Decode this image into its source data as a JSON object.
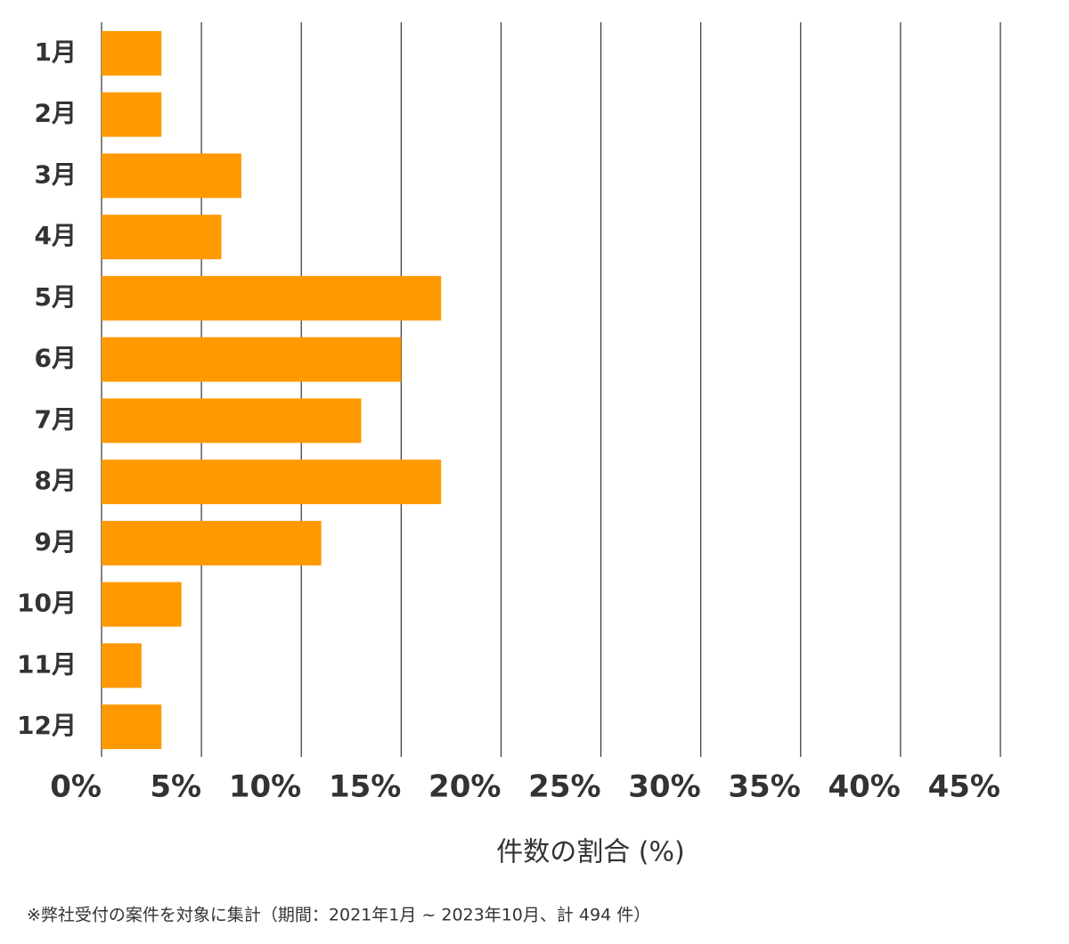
{
  "chart_data": {
    "type": "bar",
    "orientation": "horizontal",
    "categories": [
      "1月",
      "2月",
      "3月",
      "4月",
      "5月",
      "6月",
      "7月",
      "8月",
      "9月",
      "10月",
      "11月",
      "12月"
    ],
    "values": [
      3,
      3,
      7,
      6,
      17,
      15,
      13,
      17,
      11,
      4,
      2,
      3
    ],
    "color": "#ff9900",
    "xlim": [
      0,
      45
    ],
    "xticks": [
      {
        "value": 0,
        "label": "0%"
      },
      {
        "value": 5,
        "label": "5%"
      },
      {
        "value": 10,
        "label": "10%"
      },
      {
        "value": 15,
        "label": "15%"
      },
      {
        "value": 20,
        "label": "20%"
      },
      {
        "value": 25,
        "label": "25%"
      },
      {
        "value": 30,
        "label": "30%"
      },
      {
        "value": 35,
        "label": "35%"
      },
      {
        "value": 40,
        "label": "40%"
      },
      {
        "value": 45,
        "label": "45%"
      }
    ],
    "x_label": "件数の割合 (%)",
    "grid": true,
    "note": "※弊社受付の案件を対象に集計（期間：2021年1月 ~ 2023年10月、計 494 件）"
  }
}
